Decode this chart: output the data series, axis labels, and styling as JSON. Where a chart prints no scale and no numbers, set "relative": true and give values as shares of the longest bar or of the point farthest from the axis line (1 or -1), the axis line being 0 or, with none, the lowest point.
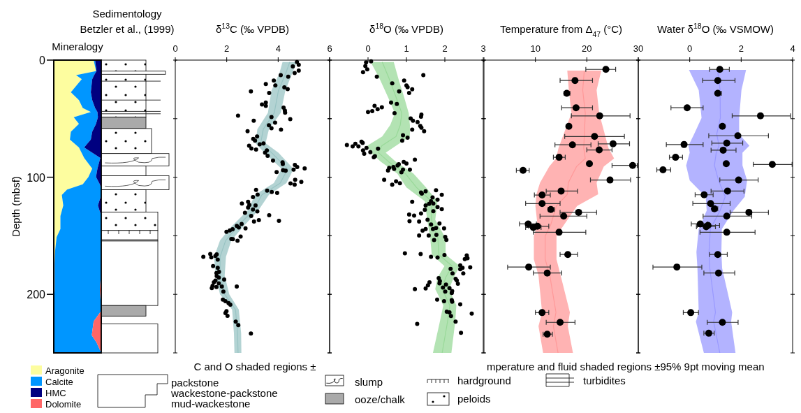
{
  "chart_data": [
    {
      "type": "area",
      "title": "Mineralogy",
      "ylabel": "Depth (mbsf)",
      "stacked": true,
      "orientation": "horizontal",
      "relative": true,
      "ylim": [
        250,
        0
      ],
      "yticks": [
        0,
        100,
        200
      ],
      "legend": "bottom",
      "series": [
        {
          "name": "Aragonite",
          "color": "#fdfd9f",
          "x": [
            0,
            9.4,
            12.8,
            16.2,
            27.4,
            34.2,
            40.9,
            44.3,
            48.8,
            54.4,
            61.1,
            67.9,
            74.6,
            83.6,
            92.6,
            99.8,
            106.1,
            110.6,
            115.1,
            124.1,
            133.1,
            144.3,
            151.1,
            162.3,
            173.5,
            185,
            196,
            207.3,
            214,
            223,
            235,
            241,
            250
          ],
          "values": [
            0.84,
            0.89,
            0.47,
            0.59,
            0.36,
            0.53,
            0.61,
            0.78,
            0.42,
            0.53,
            0.36,
            0.34,
            0.53,
            0.64,
            0.81,
            0.73,
            0.61,
            0.28,
            0.17,
            0.2,
            0.14,
            0.14,
            0.06,
            0.03,
            0.02,
            0.02,
            0.02,
            0,
            0,
            0,
            0,
            0,
            0
          ]
        },
        {
          "name": "Calcite",
          "color": "#0096ff",
          "x": [
            0,
            9.4,
            12.8,
            16.2,
            27.4,
            34.2,
            40.9,
            44.3,
            48.8,
            54.4,
            61.1,
            67.9,
            74.6,
            83.6,
            92.6,
            99.8,
            106.1,
            110.6,
            115.1,
            124.1,
            133.1,
            144.3,
            151.1,
            162.3,
            173.5,
            185,
            196,
            207.3,
            214,
            223,
            235,
            241,
            250
          ],
          "values": [
            0.03,
            0.01,
            0.38,
            0.22,
            0.42,
            0.28,
            0.26,
            0.14,
            0.51,
            0.36,
            0.45,
            0.44,
            0.11,
            0.34,
            0.11,
            0.16,
            0.36,
            0.72,
            0.83,
            0.73,
            0.86,
            0.86,
            0.94,
            0.97,
            0.98,
            0.97,
            0.95,
            0.99,
            1,
            0.84,
            0.8,
            0.9,
            1
          ]
        },
        {
          "name": "HMC",
          "color": "#000080",
          "x": [
            0,
            9.4,
            12.8,
            16.2,
            27.4,
            34.2,
            40.9,
            44.3,
            48.8,
            54.4,
            61.1,
            67.9,
            74.6,
            83.6,
            92.6,
            99.8,
            106.1,
            110.6,
            115.1,
            124.1,
            133.1,
            144.3,
            151.1,
            162.3,
            173.5,
            185,
            196,
            207.3,
            214,
            223,
            235,
            241,
            250
          ],
          "values": [
            0.13,
            0.1,
            0.15,
            0.19,
            0.22,
            0.19,
            0.13,
            0.08,
            0.07,
            0.11,
            0.19,
            0.22,
            0.36,
            0.02,
            0.08,
            0.11,
            0.03,
            0,
            0,
            0.07,
            0,
            0,
            0,
            0,
            0,
            0,
            0,
            0,
            0,
            0,
            0,
            0,
            0
          ]
        },
        {
          "name": "Dolomite",
          "color": "#ff6666",
          "x": [
            0,
            9.4,
            12.8,
            16.2,
            27.4,
            34.2,
            40.9,
            44.3,
            48.8,
            54.4,
            61.1,
            67.9,
            74.6,
            83.6,
            92.6,
            99.8,
            106.1,
            110.6,
            115.1,
            124.1,
            133.1,
            144.3,
            151.1,
            162.3,
            173.5,
            185,
            196,
            207.3,
            214,
            223,
            235,
            241,
            250
          ],
          "values": [
            0,
            0,
            0,
            0,
            0,
            0,
            0,
            0,
            0,
            0,
            0,
            0,
            0,
            0,
            0,
            0,
            0,
            0,
            0,
            0,
            0,
            0,
            0,
            0,
            0,
            0.01,
            0.03,
            0.01,
            0,
            0.16,
            0.2,
            0.1,
            0
          ]
        }
      ]
    },
    {
      "type": "other",
      "title": "Sedimentology",
      "subtitle": "Betzler et al., (1999)",
      "annotations": [
        "packstone",
        "wackestone-packstone",
        "mud-wackestone",
        "slump",
        "ooze/chalk",
        "hardground",
        "peloids",
        "turbidites"
      ]
    },
    {
      "type": "scatter",
      "title": "δ$^{13}$C (‰ VPDB)",
      "orientation": "horizontal",
      "xlim": [
        0,
        6
      ],
      "xticks": [
        0,
        2,
        4,
        6
      ],
      "ylim": [
        250,
        0
      ],
      "yticks": [
        {
          "value": 0,
          "label": null
        },
        {
          "value": 50,
          "label": null
        },
        {
          "value": 100,
          "label": null
        },
        {
          "value": 150,
          "label": null
        },
        {
          "value": 200,
          "label": null
        },
        {
          "value": 250,
          "label": null
        }
      ],
      "tick_labels": "x",
      "marker": "circle",
      "annotations": [
        "C and O shaded regions ±"
      ],
      "series": [
        {
          "type": "line",
          "marker": "none",
          "color": "#99c4c4",
          "x": [
            1.6,
            11,
            26,
            45,
            59,
            71,
            79,
            93,
            105,
            115,
            128,
            142,
            154,
            168,
            184,
            200,
            213,
            233,
            250
          ],
          "values": [
            4.45,
            4.3,
            4.01,
            3.85,
            3.42,
            3.32,
            3.74,
            4.37,
            4.08,
            3.37,
            3.04,
            2.42,
            1.96,
            1.74,
            1.74,
            1.92,
            2.34,
            2.42,
            2.44
          ],
          "lower": [
            4.17,
            4.05,
            3.74,
            3.6,
            3.19,
            3.12,
            3.46,
            4.14,
            3.83,
            3.1,
            2.83,
            2.19,
            1.74,
            1.51,
            1.56,
            1.74,
            2.21,
            2.28,
            2.3
          ],
          "upper": [
            4.73,
            4.55,
            4.28,
            4.1,
            3.64,
            3.51,
            4.01,
            4.6,
            4.32,
            3.64,
            3.24,
            2.65,
            2.18,
            1.97,
            1.92,
            2.1,
            2.47,
            2.56,
            2.57
          ]
        },
        {
          "type": "scatter",
          "color": "#000000",
          "x": [
            1.6,
            4,
            5.3,
            8.9,
            11,
            12.8,
            14.2,
            17.4,
            20.4,
            21.7,
            23.3,
            24.7,
            26.7,
            28,
            36.2,
            37.9,
            39.1,
            40.5,
            43.1,
            44.9,
            47.4,
            50.4,
            48.6,
            51.8,
            53.4,
            55.7,
            58.1,
            60.7,
            59.3,
            65.2,
            67.2,
            68.8,
            73.1,
            75.5,
            71.9,
            71.1,
            76.3,
            77.1,
            79,
            81.8,
            85.8,
            87.3,
            88.7,
            89.5,
            91.3,
            92.5,
            93.5,
            94.4,
            95.6,
            93.9,
            102.2,
            103.9,
            105.3,
            106.3,
            110.9,
            111.4,
            112.6,
            113.4,
            114.8,
            117,
            120.9,
            122.5,
            123.7,
            124.1,
            125.9,
            130.4,
            127.6,
            129.2,
            133,
            132.4,
            136.7,
            137.9,
            137.3,
            141.5,
            139.9,
            142.9,
            143.7,
            144.4,
            145.4,
            146.6,
            150.6,
            152.7,
            152.9,
            154.3,
            165.8,
            165.6,
            168,
            168.4,
            167.2,
            170.3,
            175.9,
            177.4,
            180.8,
            181.8,
            184.4,
            185.7,
            187.3,
            188.3,
            189.7,
            190.7,
            192.7,
            194.6,
            193.7,
            193.3,
            193.3,
            197.6,
            204.5,
            205.9,
            207.5,
            208.9,
            214.4,
            216,
            218.4,
            223.3,
            226.3,
            233.4
          ],
          "values": [
            4.73,
            4.8,
            4.57,
            4.8,
            4.64,
            4.1,
            4.39,
            3.83,
            3.52,
            3.89,
            4.24,
            4.37,
            2.94,
            3.65,
            3.52,
            3.37,
            3.52,
            4.21,
            4.26,
            4.27,
            2.44,
            4.47,
            3.74,
            3.05,
            3.88,
            3.64,
            3.74,
            2.81,
            4.11,
            3.18,
            3.03,
            3.1,
            2.87,
            2.96,
            3.28,
            3.43,
            3.14,
            3.56,
            3.49,
            3.59,
            3.8,
            4.17,
            4.18,
            4.65,
            4.74,
            5.03,
            4.6,
            4.29,
            3.94,
            4.19,
            4.66,
            4.9,
            4.48,
            4.64,
            3.14,
            3.57,
            3.75,
            3.96,
            3.2,
            3.02,
            2.83,
            2.59,
            2.88,
            3.12,
            2.83,
            2.71,
            3.02,
            3.19,
            2.95,
            3.65,
            3.25,
            3.06,
            4.03,
            2.39,
            2.58,
            2.47,
            2.73,
            2.23,
            2.12,
            1.99,
            2.54,
            2.18,
            2.24,
            2.42,
            1.61,
            1.36,
            1.09,
            1.4,
            1.56,
            1.65,
            1.47,
            1.65,
            1.7,
            1.6,
            1.61,
            1.69,
            1.9,
            1.56,
            1.5,
            1.69,
            1.45,
            1.42,
            1.6,
            1.81,
            2.39,
            1.87,
            1.85,
            1.95,
            2.07,
            2.14,
            1.99,
            1.95,
            2.03,
            2.35,
            2.45,
            2.94
          ]
        }
      ]
    },
    {
      "type": "scatter",
      "title": "δ$^{18}$O (‰ VPDB)",
      "orientation": "horizontal",
      "xlim": [
        -1,
        3
      ],
      "xticks": [
        {
          "value": -1,
          "label": null
        },
        0,
        1,
        2,
        3
      ],
      "ylim": [
        250,
        0
      ],
      "yticks": [
        {
          "value": 0,
          "label": null
        },
        {
          "value": 50,
          "label": null
        },
        {
          "value": 100,
          "label": null
        },
        {
          "value": 150,
          "label": null
        },
        {
          "value": 200,
          "label": null
        },
        {
          "value": 250,
          "label": null
        }
      ],
      "tick_labels": "x",
      "marker": "circle",
      "series": [
        {
          "type": "line",
          "marker": "none",
          "color": "#99d999",
          "x": [
            1.6,
            15.8,
            31.6,
            45.4,
            55.3,
            65.2,
            73.1,
            79,
            86.9,
            96.8,
            108.7,
            120.5,
            136.3,
            152.2,
            166,
            175.9,
            185.7,
            195.6,
            209.5,
            223.3,
            250
          ],
          "values": [
            0.37,
            0.55,
            0.73,
            0.88,
            0.84,
            0.73,
            0.36,
            0.27,
            0.54,
            0.97,
            1.26,
            1.65,
            1.65,
            1.82,
            1.84,
            2.19,
            2.02,
            1.93,
            2.13,
            2.07,
            1.93
          ],
          "lower": [
            0.07,
            0.3,
            0.52,
            0.7,
            0.58,
            0.37,
            -0.02,
            0.07,
            0.34,
            0.76,
            1,
            1.48,
            1.54,
            1.62,
            1.66,
            1.99,
            1.81,
            1.75,
            1.96,
            1.87,
            1.69
          ],
          "upper": [
            0.67,
            0.79,
            0.94,
            1.06,
            1.09,
            1.09,
            0.73,
            0.46,
            0.73,
            1.18,
            1.51,
            1.81,
            1.75,
            2.02,
            2.02,
            2.39,
            2.23,
            2.11,
            2.3,
            2.27,
            2.17
          ]
        },
        {
          "type": "scatter",
          "color": "#000000",
          "x": [
            1,
            2,
            5.1,
            7.9,
            10.3,
            12.8,
            14.2,
            17.4,
            19.8,
            21.7,
            23.1,
            24.9,
            26.7,
            28,
            36.2,
            37.5,
            39.1,
            40.3,
            41.9,
            43.5,
            44.3,
            45.4,
            46.6,
            48.4,
            49.8,
            51.8,
            53,
            56.3,
            57.7,
            60.7,
            59.3,
            64.2,
            66.2,
            68.8,
            69.6,
            70.7,
            71.5,
            72.5,
            73.7,
            73.7,
            75.1,
            75.7,
            77.1,
            78.6,
            80,
            82,
            83,
            85,
            86.9,
            88.3,
            88.9,
            89.9,
            91.3,
            92.1,
            92.9,
            94.3,
            93.5,
            93.5,
            95.8,
            102.2,
            103.5,
            105.1,
            106.3,
            112,
            111.1,
            113,
            114,
            115,
            117.2,
            120.9,
            120.5,
            119.2,
            122.7,
            122.5,
            124.1,
            125.5,
            127.3,
            127.8,
            129,
            131.8,
            132.8,
            131,
            136.3,
            137.9,
            137.5,
            140.3,
            139.5,
            143.7,
            143.3,
            144.3,
            145.6,
            144.3,
            149.2,
            149.8,
            149.8,
            151,
            153.5,
            153.7,
            165,
            165.6,
            166.4,
            168.6,
            168,
            166.8,
            169.9,
            169.1,
            175.3,
            177.4,
            176.9,
            178.5,
            178.2,
            182.2,
            182.2,
            186.7,
            190.9,
            188.1,
            186.2,
            188.7,
            190.7,
            189.7,
            192.3,
            195,
            195.6,
            191.7,
            194.2,
            194.6,
            197.6,
            197.2,
            198.8,
            204.5,
            205.9,
            204.9,
            206.3,
            208.5,
            214.8,
            215.4,
            218.6,
            216.4,
            223.3,
            225.3,
            232.8
          ],
          "values": [
            0.08,
            -0.05,
            -0.07,
            -0.02,
            -0.13,
            1.44,
            0.23,
            0.94,
            0.63,
            1,
            1.03,
            1.15,
            0.81,
            1.07,
            0.6,
            0.75,
            0.17,
            0.36,
            0.25,
            0.11,
            0,
            0.69,
            1.39,
            1.38,
            1.11,
            1.17,
            1.29,
            1.36,
            1.39,
            1.46,
            1.15,
            0.91,
            1.03,
            0.89,
            -0.17,
            -0.14,
            -0.33,
            -0.55,
            -0.4,
            -0.25,
            -0.04,
            0.26,
            -0.13,
            0.06,
            -0.1,
            0.18,
            0.15,
            1.22,
            0.93,
            1,
            0.8,
            0.77,
            0.66,
            0.55,
            0.68,
            0.52,
            1.09,
            0.91,
            0.87,
            0.42,
            0.73,
            0.83,
            0.63,
            1.5,
            1.77,
            1.38,
            1.4,
            1.92,
            1.68,
            1.15,
            1.64,
            1.81,
            1.59,
            1.7,
            1.5,
            1.81,
            1.92,
            1.48,
            1.7,
            1.07,
            1.2,
            1.38,
            1.55,
            1.33,
            1.08,
            1.64,
            1.86,
            1.98,
            1.77,
            1.5,
            1.42,
            1.69,
            1.78,
            1.58,
            1.33,
            2.01,
            2.04,
            1.72,
            0.96,
            1.37,
            1.99,
            1.81,
            1.64,
            2.57,
            2.52,
            2.59,
            2.4,
            2.46,
            2.66,
            2.4,
            2.15,
            2.48,
            2.2,
            2.28,
            2.34,
            2.31,
            1.84,
            1.87,
            1.86,
            1.6,
            1.56,
            1.5,
            1.22,
            2.03,
            1.95,
            2.12,
            2.01,
            2.19,
            2.18,
            1.8,
            1.98,
            2.18,
            2.19,
            2.4,
            2.05,
            2.12,
            2.16,
            2.7,
            2.28,
            1.28,
            2.42
          ]
        }
      ]
    },
    {
      "type": "scatter",
      "title": "Temperature from Δ$_{47}$ (°C)",
      "orientation": "horizontal",
      "xlim": [
        0,
        30
      ],
      "xticks": [
        {
          "value": 0,
          "label": null
        },
        10,
        20,
        30
      ],
      "ylim": [
        250,
        0
      ],
      "yticks": [
        {
          "value": 0,
          "label": null
        },
        {
          "value": 50,
          "label": null
        },
        {
          "value": 100,
          "label": null
        },
        {
          "value": 150,
          "label": null
        },
        {
          "value": 200,
          "label": null
        },
        {
          "value": 250,
          "label": null
        }
      ],
      "tick_labels": "x",
      "marker": "circle",
      "annotations": [
        "mperature and fluid shaded regions ±95% 9pt moving mean"
      ],
      "series": [
        {
          "type": "line",
          "marker": "none",
          "color": "#ff9999",
          "x": [
            9,
            25.7,
            45.4,
            75.1,
            84,
            90.9,
            104.7,
            114.6,
            124.5,
            140.3,
            150.2,
            170,
            183.8,
            215.4,
            227.2,
            250
          ],
          "values": [
            19.5,
            19.2,
            19.7,
            19.4,
            19.7,
            18,
            16.4,
            16.2,
            14.1,
            13,
            11.9,
            11.9,
            12.8,
            14,
            13.5,
            14.4
          ],
          "lower": [
            16.2,
            16.5,
            17,
            14.5,
            14,
            12.7,
            10.9,
            10.2,
            10,
            10.4,
            9.7,
            9.7,
            10.6,
            11.3,
            10.6,
            11.5
          ],
          "upper": [
            22.8,
            21.9,
            22.4,
            24.2,
            25.3,
            23.3,
            21.9,
            22.2,
            18.1,
            15.6,
            14.1,
            14.1,
            14.9,
            16.7,
            16.3,
            17.3
          ]
        },
        {
          "type": "scatter",
          "color": "#000000",
          "x": [
            7.9,
            17.4,
            28.3,
            40.7,
            47.6,
            56.5,
            65.2,
            72.3,
            71.5,
            76.7,
            83,
            88.5,
            89.9,
            94.1,
            102.4,
            111.8,
            115.2,
            122.5,
            127.5,
            130,
            133.2,
            139.9,
            142.9,
            141.9,
            147,
            166,
            176.7,
            181.8,
            215.6,
            223.9,
            234
          ],
          "values": [
            23.7,
            17.7,
            16.1,
            17.9,
            22.5,
            16.5,
            21.5,
            17.2,
            25.1,
            22.4,
            14.6,
            20.5,
            28.9,
            7.6,
            24.5,
            15,
            11.3,
            11.3,
            13,
            18.4,
            15.5,
            8.6,
            9.6,
            10.4,
            14.6,
            16.3,
            8.7,
            12.3,
            11.3,
            14.8,
            12.3
          ],
          "errors": [
            [
              19.8,
              25.6
            ],
            [
              14.8,
              21.1
            ],
            [
              15.6,
              16.7
            ],
            [
              15.1,
              21.1
            ],
            [
              17,
              28.4
            ],
            null,
            [
              15.7,
              27.3
            ],
            [
              13.8,
              20.8
            ],
            [
              22.2,
              28.3
            ],
            [
              20,
              24.9
            ],
            [
              13.5,
              15.8
            ],
            null,
            [
              24.9,
              29.8
            ],
            [
              6.3,
              8.8
            ],
            [
              20.7,
              28.5
            ],
            [
              12.1,
              18.2
            ],
            [
              9.8,
              12.9
            ],
            [
              8.1,
              14.8
            ],
            [
              12.5,
              13.7
            ],
            [
              14.8,
              21.9
            ],
            [
              10.9,
              20
            ],
            [
              6.9,
              10.2
            ],
            [
              8.1,
              11.1
            ],
            [
              8.7,
              12.6
            ],
            [
              9.6,
              19.8
            ],
            [
              14.8,
              18.2
            ],
            [
              4.6,
              12.9
            ],
            [
              9.6,
              15.1
            ],
            [
              10,
              12.6
            ],
            [
              12.1,
              17.7
            ],
            [
              11.5,
              13.3
            ]
          ]
        }
      ]
    },
    {
      "type": "scatter",
      "title": "Water δ$^{18}$O (‰ VSMOW)",
      "orientation": "horizontal",
      "xlim": [
        -2,
        4
      ],
      "xticks": [
        {
          "value": -2,
          "label": null
        },
        0,
        2,
        4
      ],
      "ylim": [
        250,
        0
      ],
      "yticks": [
        {
          "value": 0,
          "label": null
        },
        {
          "value": 50,
          "label": null
        },
        {
          "value": 100,
          "label": null
        },
        {
          "value": 150,
          "label": null
        },
        {
          "value": 200,
          "label": null
        },
        {
          "value": 250,
          "label": null
        }
      ],
      "tick_labels": "x",
      "marker": "circle",
      "series": [
        {
          "type": "line",
          "marker": "none",
          "color": "#9999ff",
          "x": [
            8.3,
            25.7,
            49.4,
            63.2,
            73.1,
            79,
            89.9,
            102.8,
            116.6,
            128.4,
            144.3,
            164,
            177.8,
            215.4,
            223.3,
            250
          ],
          "values": [
            1.08,
            1.18,
            1.19,
            1.05,
            1.14,
            1.03,
            0.96,
            1.12,
            1.38,
            1.18,
            0.8,
            0.75,
            0.78,
            1,
            0.93,
            1.17
          ],
          "lower": [
            -0.03,
            0.35,
            0.46,
            0.17,
            -0.05,
            0,
            -0.14,
            0,
            0.62,
            0.66,
            0.35,
            0.26,
            0.3,
            0.35,
            0.24,
            0.55
          ],
          "upper": [
            2.19,
            2.01,
            1.92,
            1.92,
            2.32,
            2.05,
            2.05,
            2.23,
            2.14,
            1.7,
            1.25,
            1.23,
            1.26,
            1.65,
            1.61,
            1.78
          ]
        },
        {
          "type": "scatter",
          "color": "#000000",
          "x": [
            7.9,
            17.4,
            28.3,
            40.7,
            47.6,
            56.5,
            64.6,
            72.1,
            70.9,
            76.9,
            83,
            88.5,
            89.1,
            93.7,
            102.4,
            111.8,
            115,
            122.5,
            126.9,
            130,
            133.2,
            139.9,
            142.3,
            141.1,
            147,
            166,
            176.7,
            181.8,
            215.6,
            223.9,
            233.2
          ],
          "values": [
            1.17,
            1.09,
            1.09,
            -0.1,
            2.75,
            1.27,
            1.87,
            -0.22,
            1.44,
            1.3,
            -0.55,
            1.42,
            3.21,
            -1.04,
            1.9,
            1.47,
            0.56,
            0.81,
            0.96,
            2.3,
            1.44,
            0.41,
            0.64,
            0.71,
            1.44,
            1.09,
            -0.5,
            1.12,
            0.04,
            1.27,
            0.74
          ],
          "errors": [
            [
              0.77,
              1.54
            ],
            [
              0.5,
              1.76
            ],
            [
              1,
              1.23
            ],
            [
              -0.73,
              0.52
            ],
            [
              1.65,
              3.92
            ],
            null,
            [
              0.74,
              3.06
            ],
            [
              -0.91,
              0.52
            ],
            [
              0.86,
              2.06
            ],
            [
              0.83,
              1.8
            ],
            [
              -0.79,
              -0.28
            ],
            null,
            [
              2.47,
              3.98
            ],
            [
              -1.28,
              -0.74
            ],
            [
              1.17,
              2.66
            ],
            [
              0.83,
              2.11
            ],
            [
              0.21,
              0.91
            ],
            [
              0.12,
              1.57
            ],
            [
              0.87,
              1.09
            ],
            [
              1.57,
              3.06
            ],
            [
              0.52,
              2.41
            ],
            [
              0.06,
              0.69
            ],
            [
              0.26,
              1
            ],
            [
              0.29,
              1.16
            ],
            [
              0.4,
              2.54
            ],
            [
              0.77,
              1.46
            ],
            [
              -1.43,
              0.47
            ],
            [
              0.55,
              1.75
            ],
            [
              -0.25,
              0.34
            ],
            [
              0.68,
              1.88
            ],
            [
              0.55,
              0.95
            ]
          ]
        }
      ]
    }
  ]
}
